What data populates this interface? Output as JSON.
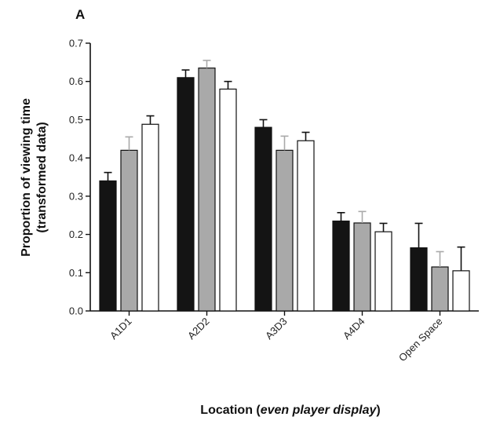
{
  "chart_data": {
    "type": "bar",
    "panel_label": "A",
    "title": "",
    "xlabel": {
      "prefix": "Location (",
      "italic": "even player display",
      "suffix": ")"
    },
    "ylabel": {
      "line1": "Proportion of viewing time",
      "line2": "(transformed data)"
    },
    "ylim": [
      0,
      0.7
    ],
    "yticks": [
      "0.0",
      "0.1",
      "0.2",
      "0.3",
      "0.4",
      "0.5",
      "0.6",
      "0.7"
    ],
    "categories": [
      "A1D1",
      "A2D2",
      "A3D3",
      "A4D4",
      "Open Space"
    ],
    "series": [
      {
        "fill": "#141414",
        "values": [
          0.34,
          0.61,
          0.48,
          0.235,
          0.165
        ],
        "errors": [
          0.022,
          0.02,
          0.02,
          0.022,
          0.064
        ]
      },
      {
        "fill": "#a9a9a9",
        "values": [
          0.42,
          0.635,
          0.42,
          0.23,
          0.115
        ],
        "errors": [
          0.035,
          0.02,
          0.037,
          0.03,
          0.04
        ]
      },
      {
        "fill": "#ffffff",
        "values": [
          0.488,
          0.58,
          0.445,
          0.207,
          0.105
        ],
        "errors": [
          0.022,
          0.02,
          0.022,
          0.022,
          0.062
        ]
      }
    ],
    "grid": false,
    "legend": "none"
  }
}
